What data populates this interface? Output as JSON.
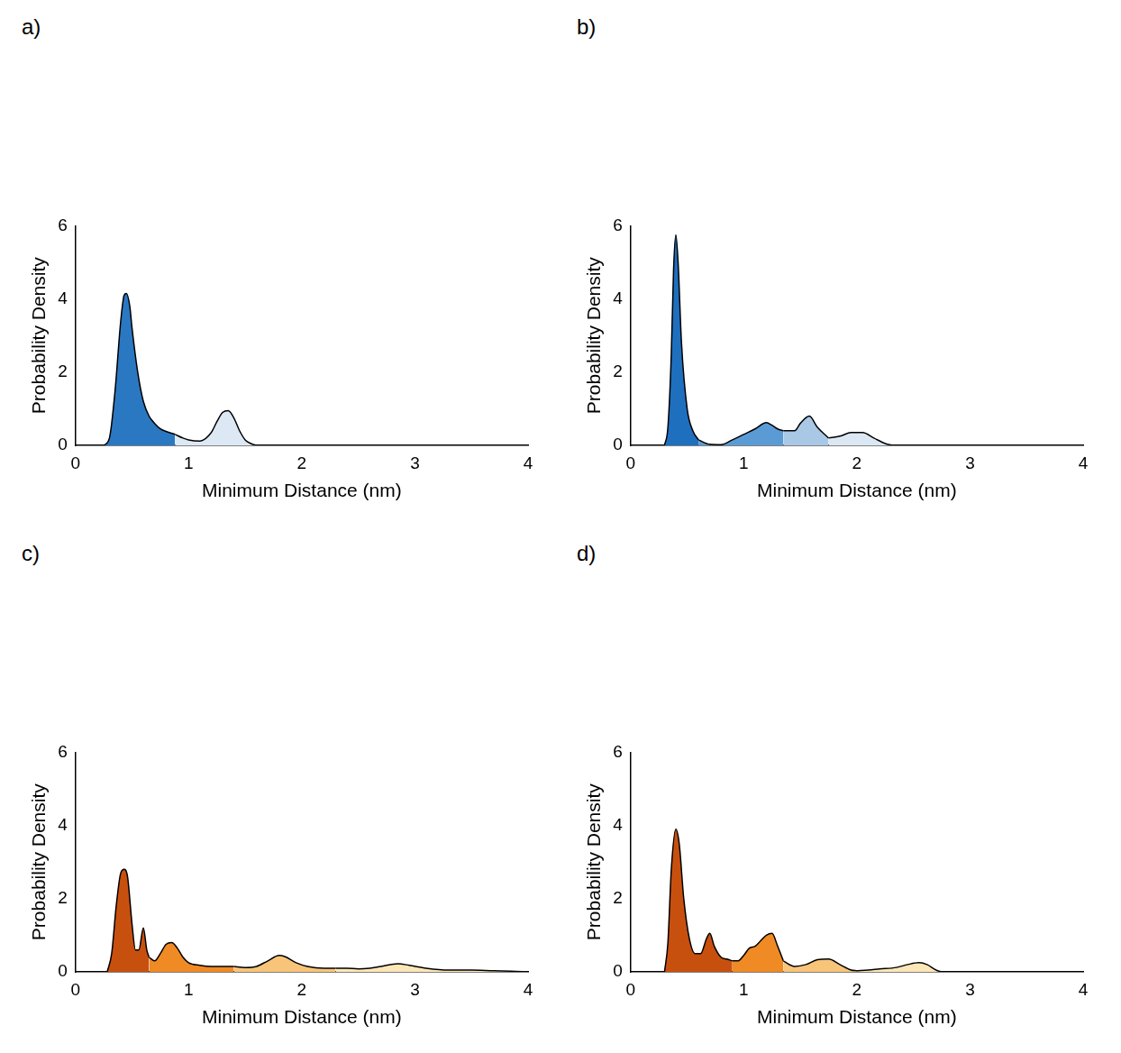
{
  "chart_data": [
    {
      "type": "area",
      "title": "a)",
      "x_label": "Minimum Distance (nm)",
      "y_label": "Probability Density",
      "xlim": [
        0,
        4
      ],
      "xticks": [
        0,
        1,
        2,
        3,
        4
      ],
      "ylim": [
        0,
        6
      ],
      "yticks": [
        0,
        2,
        4,
        6
      ],
      "grid": false,
      "series": [
        {
          "color": "#2b78c2",
          "x": [
            0.25,
            0.3,
            0.35,
            0.4,
            0.43,
            0.45,
            0.48,
            0.5,
            0.55,
            0.6,
            0.65,
            0.7,
            0.75,
            0.8,
            0.88
          ],
          "values": [
            0,
            0.2,
            1.5,
            3.4,
            4.1,
            4.15,
            3.8,
            3.2,
            2.0,
            1.2,
            0.8,
            0.6,
            0.45,
            0.38,
            0.3
          ]
        },
        {
          "color": "#dce9f5",
          "x": [
            0.88,
            0.95,
            1.0,
            1.1,
            1.2,
            1.25,
            1.3,
            1.35,
            1.4,
            1.45,
            1.5,
            1.55,
            1.6
          ],
          "values": [
            0.3,
            0.2,
            0.15,
            0.12,
            0.35,
            0.65,
            0.9,
            0.95,
            0.75,
            0.4,
            0.15,
            0.05,
            0
          ]
        }
      ]
    },
    {
      "type": "area",
      "title": "b)",
      "x_label": "Minimum Distance (nm)",
      "y_label": "Probability Density",
      "xlim": [
        0,
        4
      ],
      "xticks": [
        0,
        1,
        2,
        3,
        4
      ],
      "ylim": [
        0,
        6
      ],
      "yticks": [
        0,
        2,
        4,
        6
      ],
      "grid": false,
      "series": [
        {
          "color": "#1f6fbf",
          "x": [
            0.3,
            0.33,
            0.36,
            0.38,
            0.4,
            0.42,
            0.45,
            0.5,
            0.55,
            0.6
          ],
          "values": [
            0,
            0.5,
            2.5,
            4.8,
            5.75,
            5.0,
            2.8,
            1.0,
            0.4,
            0.15
          ]
        },
        {
          "color": "#5b9bd5",
          "x": [
            0.6,
            0.7,
            0.8,
            0.9,
            1.0,
            1.1,
            1.2,
            1.25,
            1.3,
            1.35
          ],
          "values": [
            0.15,
            0.03,
            0.02,
            0.15,
            0.3,
            0.45,
            0.62,
            0.55,
            0.45,
            0.4
          ]
        },
        {
          "color": "#a9c8e6",
          "x": [
            1.35,
            1.45,
            1.5,
            1.58,
            1.65,
            1.75
          ],
          "values": [
            0.4,
            0.4,
            0.6,
            0.8,
            0.5,
            0.2
          ]
        },
        {
          "color": "#dbe8f4",
          "x": [
            1.75,
            1.85,
            1.95,
            2.05,
            2.15,
            2.25,
            2.32
          ],
          "values": [
            0.2,
            0.25,
            0.35,
            0.35,
            0.2,
            0.05,
            0
          ]
        }
      ]
    },
    {
      "type": "area",
      "title": "c)",
      "x_label": "Minimum Distance (nm)",
      "y_label": "Probability Density",
      "xlim": [
        0,
        4
      ],
      "xticks": [
        0,
        1,
        2,
        3,
        4
      ],
      "ylim": [
        0,
        6
      ],
      "yticks": [
        0,
        2,
        4,
        6
      ],
      "grid": false,
      "series": [
        {
          "color": "#c8500f",
          "x": [
            0.28,
            0.32,
            0.36,
            0.4,
            0.43,
            0.46,
            0.5,
            0.53,
            0.56,
            0.6,
            0.63,
            0.65
          ],
          "values": [
            0,
            0.5,
            1.8,
            2.7,
            2.8,
            2.6,
            1.3,
            0.6,
            0.6,
            1.2,
            0.6,
            0.4
          ]
        },
        {
          "color": "#f08a24",
          "x": [
            0.65,
            0.7,
            0.75,
            0.8,
            0.85,
            0.9,
            0.95,
            1.0,
            1.1,
            1.2,
            1.3,
            1.4
          ],
          "values": [
            0.4,
            0.3,
            0.5,
            0.75,
            0.8,
            0.65,
            0.4,
            0.25,
            0.18,
            0.15,
            0.15,
            0.15
          ]
        },
        {
          "color": "#f7c47a",
          "x": [
            1.4,
            1.5,
            1.6,
            1.7,
            1.8,
            1.85,
            1.95,
            2.05,
            2.2,
            2.3
          ],
          "values": [
            0.15,
            0.12,
            0.15,
            0.3,
            0.45,
            0.42,
            0.25,
            0.15,
            0.1,
            0.1
          ]
        },
        {
          "color": "#fbe6b8",
          "x": [
            2.3,
            2.4,
            2.5,
            2.6,
            2.7,
            2.85,
            2.95,
            3.1,
            3.3,
            3.5,
            3.7,
            3.85,
            4.0
          ],
          "values": [
            0.1,
            0.1,
            0.08,
            0.1,
            0.15,
            0.22,
            0.18,
            0.1,
            0.05,
            0.05,
            0.03,
            0.02,
            0
          ]
        }
      ]
    },
    {
      "type": "area",
      "title": "d)",
      "x_label": "Minimum Distance (nm)",
      "y_label": "Probability Density",
      "xlim": [
        0,
        4
      ],
      "xticks": [
        0,
        1,
        2,
        3,
        4
      ],
      "ylim": [
        0,
        6
      ],
      "yticks": [
        0,
        2,
        4,
        6
      ],
      "grid": false,
      "series": [
        {
          "color": "#c8500f",
          "x": [
            0.3,
            0.33,
            0.36,
            0.4,
            0.43,
            0.47,
            0.52,
            0.57,
            0.62,
            0.67,
            0.7,
            0.74,
            0.8,
            0.85,
            0.9
          ],
          "values": [
            0,
            0.8,
            2.8,
            3.9,
            3.5,
            2.0,
            0.9,
            0.5,
            0.5,
            0.9,
            1.05,
            0.7,
            0.4,
            0.35,
            0.3
          ]
        },
        {
          "color": "#f08a24",
          "x": [
            0.9,
            0.95,
            1.0,
            1.05,
            1.1,
            1.15,
            1.2,
            1.25,
            1.3,
            1.35
          ],
          "values": [
            0.3,
            0.3,
            0.45,
            0.65,
            0.7,
            0.85,
            1.0,
            1.05,
            0.7,
            0.3
          ]
        },
        {
          "color": "#f7c47a",
          "x": [
            1.35,
            1.45,
            1.55,
            1.65,
            1.75,
            1.85,
            1.95,
            2.0
          ],
          "values": [
            0.3,
            0.15,
            0.2,
            0.33,
            0.35,
            0.2,
            0.05,
            0.03
          ]
        },
        {
          "color": "#fbe6b8",
          "x": [
            2.0,
            2.1,
            2.2,
            2.35,
            2.45,
            2.55,
            2.62,
            2.7,
            2.75
          ],
          "values": [
            0.03,
            0.05,
            0.08,
            0.12,
            0.2,
            0.25,
            0.2,
            0.05,
            0
          ]
        }
      ]
    }
  ]
}
